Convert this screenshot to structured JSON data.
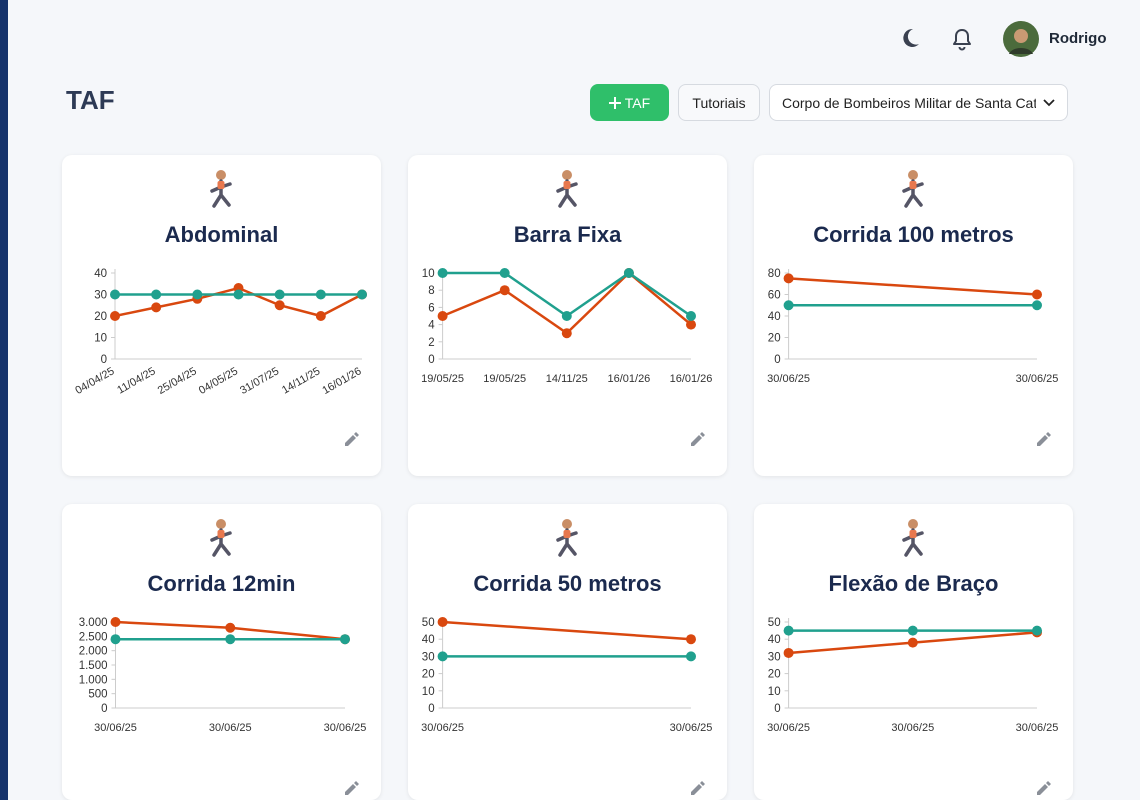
{
  "header": {
    "user_name": "Rodrigo"
  },
  "page_title": "TAF",
  "toolbar": {
    "add_button": "TAF",
    "tutorials_button": "Tutoriais",
    "organization_select": "Corpo de Bombeiros Militar de Santa Catarina"
  },
  "chart_data": [
    {
      "type": "line",
      "title": "Abdominal",
      "categories": [
        "04/04/25",
        "11/04/25",
        "25/04/25",
        "04/05/25",
        "31/07/25",
        "14/11/25",
        "16/01/26"
      ],
      "series": [
        {
          "color": "#d9480f",
          "values": [
            20,
            24,
            28,
            33,
            25,
            20,
            30
          ]
        },
        {
          "color": "#20a08e",
          "values": [
            30,
            30,
            30,
            30,
            30,
            30,
            30
          ]
        }
      ],
      "ylim": [
        0,
        40
      ],
      "yticks": [
        0,
        10,
        20,
        30,
        40
      ]
    },
    {
      "type": "line",
      "title": "Barra Fixa",
      "categories": [
        "19/05/25",
        "19/05/25",
        "14/11/25",
        "16/01/26",
        "16/01/26"
      ],
      "series": [
        {
          "color": "#d9480f",
          "values": [
            5,
            8,
            3,
            10,
            4
          ]
        },
        {
          "color": "#20a08e",
          "values": [
            10,
            10,
            5,
            10,
            5
          ]
        }
      ],
      "ylim": [
        0,
        10
      ],
      "yticks": [
        0,
        2,
        4,
        6,
        8,
        10
      ]
    },
    {
      "type": "line",
      "title": "Corrida 100 metros",
      "categories": [
        "30/06/25",
        "30/06/25"
      ],
      "series": [
        {
          "color": "#d9480f",
          "values": [
            75,
            60
          ]
        },
        {
          "color": "#20a08e",
          "values": [
            50,
            50
          ]
        }
      ],
      "ylim": [
        0,
        80
      ],
      "yticks": [
        0,
        20,
        40,
        60,
        80
      ]
    },
    {
      "type": "line",
      "title": "Corrida 12min",
      "categories": [
        "30/06/25",
        "30/06/25",
        "30/06/25"
      ],
      "series": [
        {
          "color": "#d9480f",
          "values": [
            3000,
            2800,
            2400
          ]
        },
        {
          "color": "#20a08e",
          "values": [
            2400,
            2400,
            2400
          ]
        }
      ],
      "ylim": [
        0,
        3000
      ],
      "yticks": [
        0,
        500,
        {
          "value": 1000,
          "label": "1.000"
        },
        {
          "value": 1500,
          "label": "1.500"
        },
        {
          "value": 2000,
          "label": "2.000"
        },
        {
          "value": 2500,
          "label": "2.500"
        },
        {
          "value": 3000,
          "label": "3.000"
        }
      ]
    },
    {
      "type": "line",
      "title": "Corrida 50 metros",
      "categories": [
        "30/06/25",
        "30/06/25"
      ],
      "series": [
        {
          "color": "#d9480f",
          "values": [
            50,
            40
          ]
        },
        {
          "color": "#20a08e",
          "values": [
            30,
            30
          ]
        }
      ],
      "ylim": [
        0,
        50
      ],
      "yticks": [
        0,
        10,
        20,
        30,
        40,
        50
      ]
    },
    {
      "type": "line",
      "title": "Flexão de Braço",
      "categories": [
        "30/06/25",
        "30/06/25",
        "30/06/25"
      ],
      "series": [
        {
          "color": "#d9480f",
          "values": [
            32,
            38,
            44
          ]
        },
        {
          "color": "#20a08e",
          "values": [
            45,
            45,
            45
          ]
        }
      ],
      "ylim": [
        0,
        50
      ],
      "yticks": [
        0,
        10,
        20,
        30,
        40,
        50
      ]
    }
  ]
}
